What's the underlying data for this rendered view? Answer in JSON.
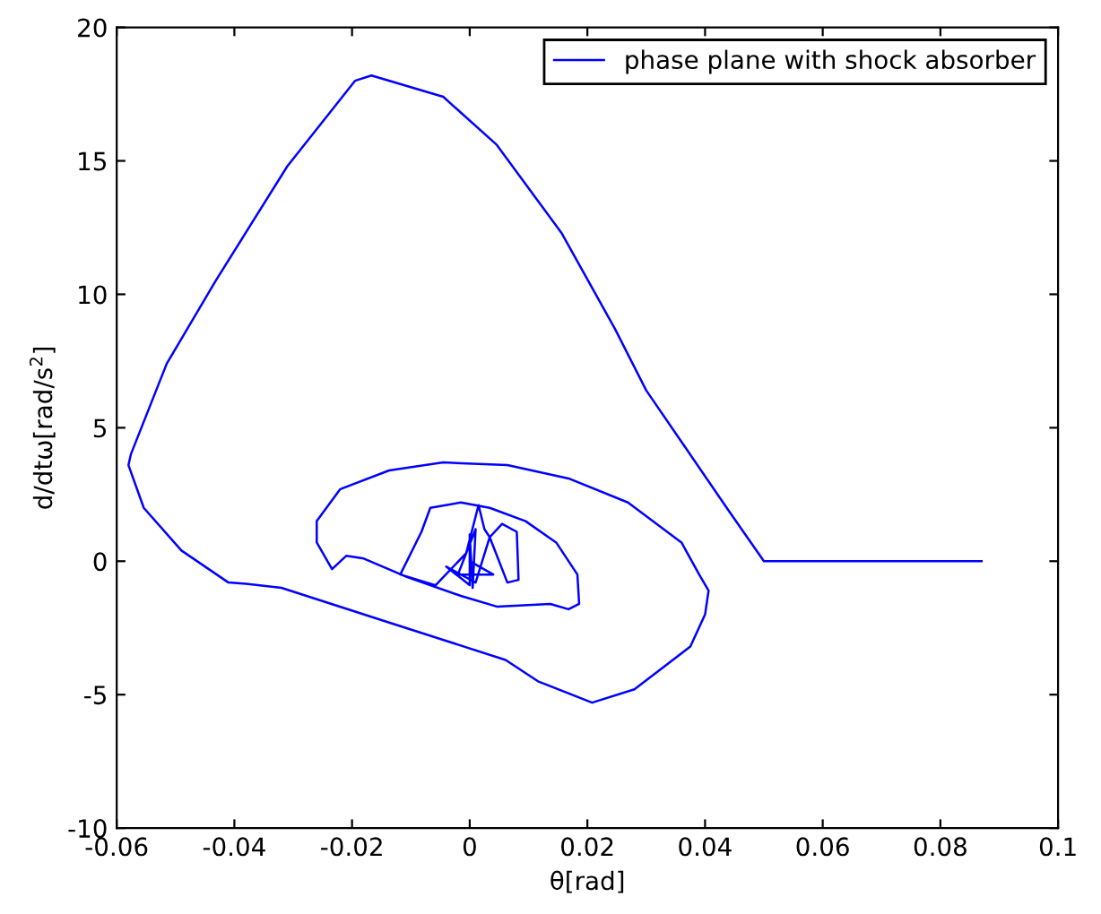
{
  "chart_data": {
    "type": "line",
    "xlabel": "θ[rad]",
    "ylabel": "d/dtω[rad/s$^{2}$]",
    "xlim": [
      -0.06,
      0.1
    ],
    "xticks": [
      -0.06,
      -0.04,
      -0.02,
      0,
      0.02,
      0.04,
      0.06,
      0.08,
      0.1
    ],
    "ylim": [
      -10,
      20
    ],
    "yticks": [
      -10,
      -5,
      0,
      5,
      10,
      15,
      20
    ],
    "legend": "top right",
    "grid": false,
    "marker": "none",
    "line_style": "solid",
    "series": [
      {
        "name": "phase plane with shock absorber",
        "color": "#0000ff",
        "x": [
          0.087,
          0.05,
          0.044,
          0.03,
          0.0247,
          0.0156,
          0.0046,
          -0.0045,
          -0.0167,
          -0.0195,
          -0.031,
          -0.0432,
          -0.0515,
          -0.0576,
          -0.058,
          -0.0554,
          -0.049,
          -0.041,
          -0.038,
          -0.032,
          -0.0137,
          0.0061,
          0.0116,
          0.0208,
          0.028,
          0.0375,
          0.04,
          0.0406,
          0.039,
          0.036,
          0.0269,
          0.0168,
          0.0064,
          -0.0045,
          -0.0137,
          -0.022,
          -0.026,
          -0.026,
          -0.0234,
          -0.021,
          -0.018,
          -0.0106,
          -0.0015,
          0.0046,
          0.0137,
          0.0168,
          0.0186,
          0.0183,
          0.0147,
          0.0095,
          0.0034,
          -0.0015,
          -0.0067,
          -0.0082,
          -0.0118,
          -0.0058,
          -0.0006,
          0.0015,
          0.0025,
          0.0034,
          0.0055,
          0.008,
          0.0083,
          0.0064,
          0.0034,
          0.001,
          -0.004,
          0.0,
          0.0,
          0.0005,
          0.001,
          -0.002,
          0.004,
          0.0
        ],
        "values": [
          0,
          0,
          1.9,
          6.4,
          8.7,
          12.3,
          15.6,
          17.4,
          18.2,
          18.0,
          14.8,
          10.5,
          7.4,
          4.0,
          3.6,
          2.0,
          0.4,
          -0.8,
          -0.85,
          -1.0,
          -2.3,
          -3.7,
          -4.5,
          -5.3,
          -4.8,
          -3.2,
          -2.0,
          -1.1,
          -0.5,
          0.7,
          2.2,
          3.1,
          3.6,
          3.7,
          3.4,
          2.7,
          1.5,
          0.7,
          -0.3,
          0.2,
          0.1,
          -0.6,
          -1.3,
          -1.7,
          -1.6,
          -1.8,
          -1.6,
          -0.5,
          0.7,
          1.5,
          2.0,
          2.2,
          2.0,
          1.1,
          -0.5,
          -0.9,
          0.3,
          2.1,
          1.2,
          0.9,
          1.4,
          1.1,
          -0.7,
          -0.8,
          0.9,
          -0.8,
          -0.2,
          -0.9,
          1.0,
          -1.0,
          1.2,
          -0.5,
          -0.5,
          0.0
        ]
      }
    ]
  }
}
